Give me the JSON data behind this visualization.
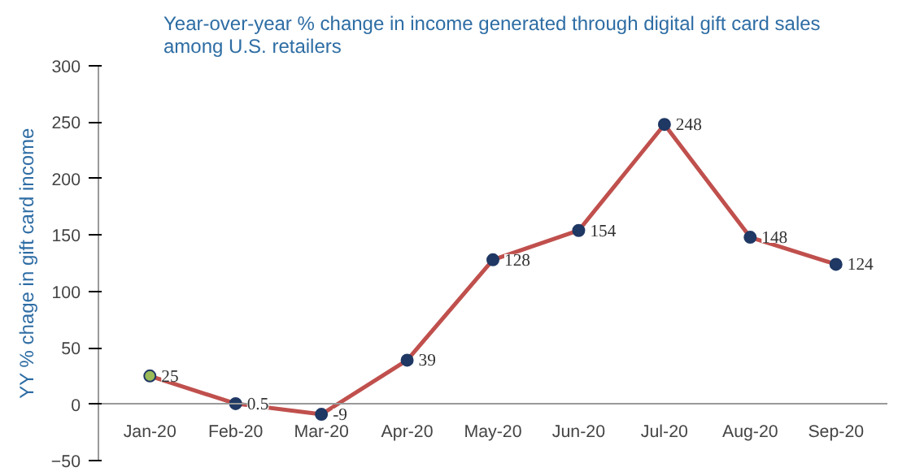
{
  "chart_data": {
    "type": "line",
    "title": "Year-over-year % change in income generated through digital gift card sales\namong U.S. retailers",
    "ylabel": "YY % chage in gift card income",
    "categories": [
      "Jan-20",
      "Feb-20",
      "Mar-20",
      "Apr-20",
      "May-20",
      "Jun-20",
      "Jul-20",
      "Aug-20",
      "Sep-20"
    ],
    "series": [
      {
        "color": "#c0504d",
        "colors": [
          "#9bbb59",
          "#1f3864",
          "#1f3864",
          "#1f3864",
          "#1f3864",
          "#1f3864",
          "#1f3864",
          "#1f3864",
          "#1f3864"
        ],
        "values": [
          25,
          0.5,
          -9,
          39,
          128,
          154,
          248,
          148,
          124
        ]
      }
    ],
    "ylim": [
      -50,
      300
    ],
    "yticks": [
      -50,
      0,
      50,
      100,
      150,
      200,
      250,
      300
    ],
    "grid": false,
    "marker": "circle",
    "line_style": "solid",
    "data_labels": true
  }
}
